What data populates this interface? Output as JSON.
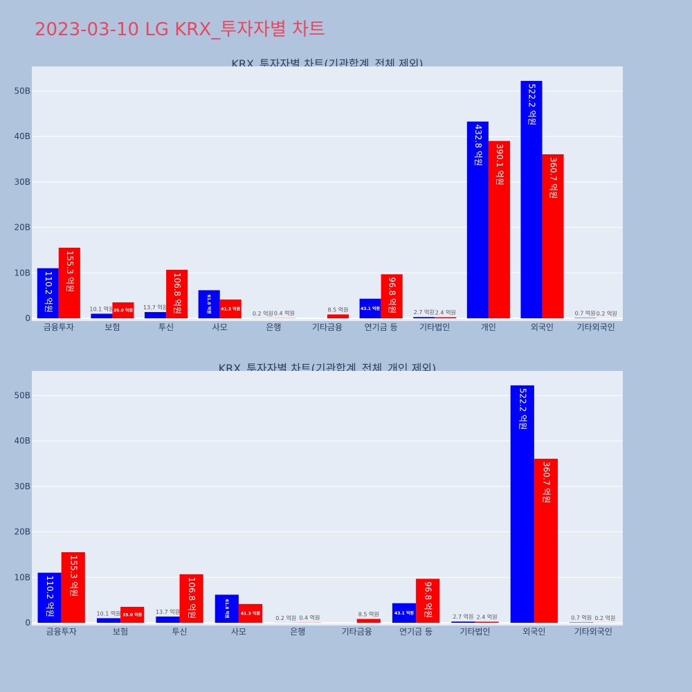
{
  "page": {
    "title": "2023-03-10 LG KRX_투자자별 차트",
    "title_color": "#e8475f",
    "background": "#b0c4de",
    "plot_background": "#e5ecf6"
  },
  "chart_data": [
    {
      "type": "bar",
      "title": "KRX_투자자별 차트(기관합계_전체 제외)",
      "xlabel": "",
      "ylabel": "",
      "ylim": [
        0,
        55.5
      ],
      "y_unit": "B",
      "yticks": [
        "0",
        "10B",
        "20B",
        "30B",
        "40B",
        "50B"
      ],
      "grid": true,
      "categories": [
        "금융투자",
        "보험",
        "투신",
        "사모",
        "은행",
        "기타금융",
        "연기금 등",
        "기타법인",
        "개인",
        "외국인",
        "기타외국인"
      ],
      "series": [
        {
          "color": "#0000ff",
          "values": [
            11.02,
            1.01,
            1.37,
            6.18,
            0.02,
            0,
            4.31,
            0.27,
            43.28,
            52.22,
            0.07
          ],
          "labels": [
            "110.2 억원",
            "10.1 억원",
            "13.7 억원",
            "61.8 억원",
            "0.2 억원",
            "",
            "43.1 억원",
            "2.7 억원",
            "432.8 억원",
            "522.2 억원",
            "0.7 억원"
          ]
        },
        {
          "color": "#ff0000",
          "values": [
            15.53,
            3.5,
            10.68,
            4.13,
            0.04,
            0.85,
            9.68,
            0.24,
            39.01,
            36.07,
            0.02
          ],
          "labels": [
            "155.3 억원",
            "35.0 억원",
            "106.8 억원",
            "41.3 억원",
            "0.4 억원",
            "8.5 억원",
            "96.8 억원",
            "2.4 억원",
            "390.1 억원",
            "360.7 억원",
            "0.2 억원"
          ]
        }
      ]
    },
    {
      "type": "bar",
      "title": "KRX_투자자별 차트(기관합계_전체_개인 제외)",
      "xlabel": "",
      "ylabel": "",
      "ylim": [
        0,
        55.5
      ],
      "y_unit": "B",
      "yticks": [
        "0",
        "10B",
        "20B",
        "30B",
        "40B",
        "50B"
      ],
      "grid": true,
      "categories": [
        "금융투자",
        "보험",
        "투신",
        "사모",
        "은행",
        "기타금융",
        "연기금 등",
        "기타법인",
        "외국인",
        "기타외국인"
      ],
      "series": [
        {
          "color": "#0000ff",
          "values": [
            11.02,
            1.01,
            1.37,
            6.18,
            0.02,
            0,
            4.31,
            0.27,
            52.22,
            0.07
          ],
          "labels": [
            "110.2 억원",
            "10.1 억원",
            "13.7 억원",
            "61.8 억원",
            "0.2 억원",
            "",
            "43.1 억원",
            "2.7 억원",
            "522.2 억원",
            "0.7 억원"
          ]
        },
        {
          "color": "#ff0000",
          "values": [
            15.53,
            3.5,
            10.68,
            4.13,
            0.04,
            0.85,
            9.68,
            0.24,
            36.07,
            0.02
          ],
          "labels": [
            "155.3 억원",
            "35.0 억원",
            "106.8 억원",
            "41.3 억원",
            "0.4 억원",
            "8.5 억원",
            "96.8 억원",
            "2.4 억원",
            "360.7 억원",
            "0.2 억원"
          ]
        }
      ]
    }
  ]
}
